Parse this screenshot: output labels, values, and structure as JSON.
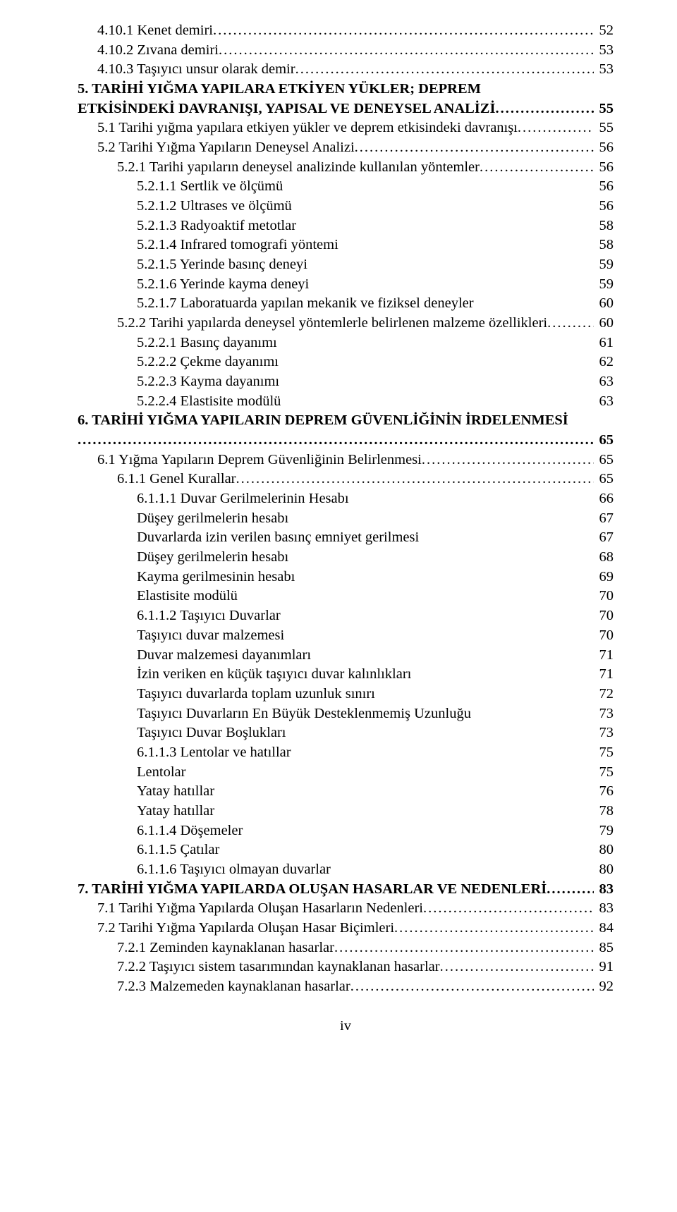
{
  "page_number_label": "iv",
  "font": {
    "family": "Times New Roman",
    "size_pt": 15,
    "color": "#000000"
  },
  "background_color": "#ffffff",
  "entries": [
    {
      "label": "4.10.1 Kenet demiri",
      "page": "52",
      "indent": 1,
      "leader": true,
      "bold": false
    },
    {
      "label": "4.10.2 Zıvana demiri",
      "page": "53",
      "indent": 1,
      "leader": true,
      "bold": false
    },
    {
      "label": "4.10.3 Taşıyıcı unsur olarak demir",
      "page": "53",
      "indent": 1,
      "leader": true,
      "bold": false
    },
    {
      "label_lines": [
        "5. TARİHİ YIĞMA YAPILARA ETKİYEN YÜKLER; DEPREM",
        "ETKİSİNDEKİ DAVRANIŞI, YAPISAL VE DENEYSEL ANALİZİ"
      ],
      "page": "55",
      "indent": 0,
      "leader": true,
      "bold": true,
      "multi": true
    },
    {
      "label": "5.1 Tarihi yığma yapılara etkiyen yükler ve deprem etkisindeki davranışı",
      "page": "55",
      "indent": 1,
      "leader": true,
      "bold": false
    },
    {
      "label": "5.2 Tarihi Yığma Yapıların Deneysel Analizi",
      "page": "56",
      "indent": 1,
      "leader": true,
      "bold": false
    },
    {
      "label": "5.2.1 Tarihi yapıların deneysel analizinde kullanılan yöntemler",
      "page": "56",
      "indent": 2,
      "leader": true,
      "bold": false
    },
    {
      "label": "5.2.1.1 Sertlik ve ölçümü",
      "page": "56",
      "indent": 3,
      "leader": false,
      "bold": false
    },
    {
      "label": "5.2.1.2 Ultrases ve ölçümü",
      "page": "56",
      "indent": 3,
      "leader": false,
      "bold": false
    },
    {
      "label": "5.2.1.3 Radyoaktif metotlar",
      "page": "58",
      "indent": 3,
      "leader": false,
      "bold": false
    },
    {
      "label": "5.2.1.4 Infrared tomografi yöntemi",
      "page": "58",
      "indent": 3,
      "leader": false,
      "bold": false
    },
    {
      "label": "5.2.1.5 Yerinde basınç deneyi",
      "page": "59",
      "indent": 3,
      "leader": false,
      "bold": false
    },
    {
      "label": "5.2.1.6 Yerinde kayma deneyi",
      "page": "59",
      "indent": 3,
      "leader": false,
      "bold": false
    },
    {
      "label": "5.2.1.7 Laboratuarda yapılan mekanik ve fiziksel deneyler",
      "page": "60",
      "indent": 3,
      "leader": false,
      "bold": false
    },
    {
      "label": "5.2.2 Tarihi yapılarda deneysel yöntemlerle belirlenen malzeme özellikleri",
      "page": "60",
      "indent": 2,
      "leader": true,
      "bold": false
    },
    {
      "label": "5.2.2.1 Basınç dayanımı",
      "page": "61",
      "indent": 3,
      "leader": false,
      "bold": false
    },
    {
      "label": "5.2.2.2 Çekme dayanımı",
      "page": "62",
      "indent": 3,
      "leader": false,
      "bold": false
    },
    {
      "label": "5.2.2.3 Kayma dayanımı",
      "page": "63",
      "indent": 3,
      "leader": false,
      "bold": false
    },
    {
      "label": "5.2.2.4 Elastisite modülü",
      "page": "63",
      "indent": 3,
      "leader": false,
      "bold": false
    },
    {
      "label_lines": [
        "6. TARİHİ YIĞMA YAPILARIN DEPREM GÜVENLİĞİNİN İRDELENMESİ",
        ""
      ],
      "page": "65",
      "indent": 0,
      "leader": true,
      "bold": true,
      "multi": true
    },
    {
      "label": "6.1 Yığma Yapıların Deprem Güvenliğinin Belirlenmesi",
      "page": "65",
      "indent": 1,
      "leader": true,
      "bold": false
    },
    {
      "label": "6.1.1 Genel Kurallar",
      "page": "65",
      "indent": 2,
      "leader": true,
      "bold": false
    },
    {
      "label": "6.1.1.1 Duvar Gerilmelerinin Hesabı",
      "page": "66",
      "indent": 3,
      "leader": false,
      "bold": false
    },
    {
      "label": "Düşey gerilmelerin hesabı",
      "page": "67",
      "indent": 3,
      "leader": false,
      "bold": false
    },
    {
      "label": "Duvarlarda izin verilen basınç emniyet gerilmesi",
      "page": "67",
      "indent": 3,
      "leader": false,
      "bold": false
    },
    {
      "label": "Düşey gerilmelerin hesabı",
      "page": "68",
      "indent": 3,
      "leader": false,
      "bold": false
    },
    {
      "label": "Kayma gerilmesinin hesabı",
      "page": "69",
      "indent": 3,
      "leader": false,
      "bold": false
    },
    {
      "label": "Elastisite modülü",
      "page": "70",
      "indent": 3,
      "leader": false,
      "bold": false
    },
    {
      "label": "6.1.1.2 Taşıyıcı Duvarlar",
      "page": "70",
      "indent": 3,
      "leader": false,
      "bold": false
    },
    {
      "label": "Taşıyıcı duvar malzemesi",
      "page": "70",
      "indent": 3,
      "leader": false,
      "bold": false
    },
    {
      "label": "Duvar malzemesi dayanımları",
      "page": "71",
      "indent": 3,
      "leader": false,
      "bold": false
    },
    {
      "label": "İzin veriken en küçük taşıyıcı duvar kalınlıkları",
      "page": "71",
      "indent": 3,
      "leader": false,
      "bold": false
    },
    {
      "label": "Taşıyıcı duvarlarda toplam uzunluk sınırı",
      "page": "72",
      "indent": 3,
      "leader": false,
      "bold": false
    },
    {
      "label": "Taşıyıcı Duvarların En Büyük Desteklenmemiş Uzunluğu",
      "page": "73",
      "indent": 3,
      "leader": false,
      "bold": false
    },
    {
      "label": "Taşıyıcı Duvar Boşlukları",
      "page": "73",
      "indent": 3,
      "leader": false,
      "bold": false
    },
    {
      "label": "6.1.1.3 Lentolar ve hatıllar",
      "page": "75",
      "indent": 3,
      "leader": false,
      "bold": false
    },
    {
      "label": "Lentolar",
      "page": "75",
      "indent": 3,
      "leader": false,
      "bold": false
    },
    {
      "label": "Yatay hatıllar",
      "page": "76",
      "indent": 3,
      "leader": false,
      "bold": false
    },
    {
      "label": "Yatay hatıllar",
      "page": "78",
      "indent": 3,
      "leader": false,
      "bold": false
    },
    {
      "label": "6.1.1.4 Döşemeler",
      "page": "79",
      "indent": 3,
      "leader": false,
      "bold": false
    },
    {
      "label": "6.1.1.5 Çatılar",
      "page": "80",
      "indent": 3,
      "leader": false,
      "bold": false
    },
    {
      "label": "6.1.1.6 Taşıyıcı olmayan duvarlar",
      "page": "80",
      "indent": 3,
      "leader": false,
      "bold": false
    },
    {
      "label": "7. TARİHİ YIĞMA YAPILARDA OLUŞAN HASARLAR VE NEDENLERİ",
      "page": "83",
      "indent": 0,
      "leader": true,
      "bold": true
    },
    {
      "label": "7.1 Tarihi Yığma Yapılarda Oluşan Hasarların Nedenleri",
      "page": "83",
      "indent": 1,
      "leader": true,
      "bold": false
    },
    {
      "label": "7.2 Tarihi Yığma Yapılarda Oluşan Hasar Biçimleri",
      "page": "84",
      "indent": 1,
      "leader": true,
      "bold": false
    },
    {
      "label": "7.2.1 Zeminden kaynaklanan hasarlar",
      "page": "85",
      "indent": 2,
      "leader": true,
      "bold": false
    },
    {
      "label": "7.2.2 Taşıyıcı sistem tasarımından kaynaklanan hasarlar",
      "page": "91",
      "indent": 2,
      "leader": true,
      "bold": false
    },
    {
      "label": "7.2.3 Malzemeden kaynaklanan hasarlar",
      "page": "92",
      "indent": 2,
      "leader": true,
      "bold": false
    }
  ]
}
